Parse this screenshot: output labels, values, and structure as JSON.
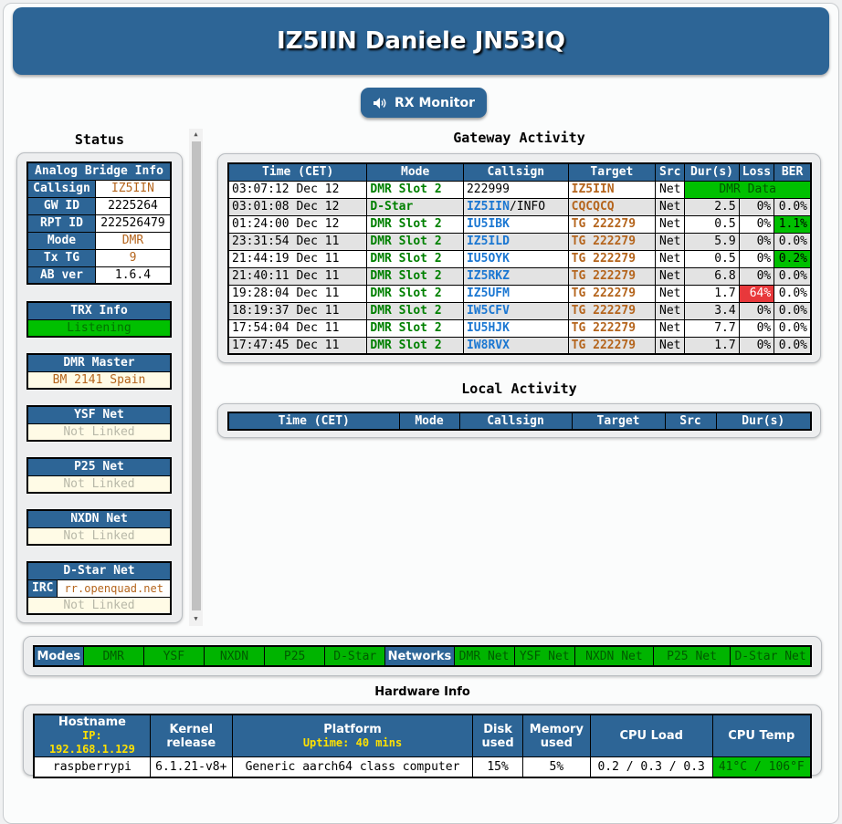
{
  "header": {
    "title": "IZ5IIN Daniele JN53IQ"
  },
  "rx_monitor": {
    "label": "RX Monitor",
    "icon": "speaker-icon"
  },
  "status": {
    "title": "Status",
    "analog_bridge": {
      "title": "Analog Bridge Info",
      "rows": [
        {
          "label": "Callsign",
          "value": "IZ5IIN"
        },
        {
          "label": "GW ID",
          "value": "2225264"
        },
        {
          "label": "RPT ID",
          "value": "222526479"
        },
        {
          "label": "Mode",
          "value": "DMR"
        },
        {
          "label": "Tx TG",
          "value": "9"
        },
        {
          "label": "AB ver",
          "value": "1.6.4"
        }
      ]
    },
    "trx": {
      "title": "TRX Info",
      "value": "Listening"
    },
    "dmr_master": {
      "title": "DMR Master",
      "value": "BM 2141 Spain"
    },
    "ysf": {
      "title": "YSF Net",
      "value": "Not Linked"
    },
    "p25": {
      "title": "P25 Net",
      "value": "Not Linked"
    },
    "nxdn": {
      "title": "NXDN Net",
      "value": "Not Linked"
    },
    "dstar": {
      "title": "D-Star Net",
      "irc_label": "IRC",
      "irc_value": "rr.openquad.net",
      "value": "Not Linked"
    }
  },
  "gateway": {
    "title": "Gateway Activity",
    "columns": [
      "Time (CET)",
      "Mode",
      "Callsign",
      "Target",
      "Src",
      "Dur(s)",
      "Loss",
      "BER"
    ],
    "rows": [
      {
        "time": "03:07:12 Dec 12",
        "mode": "DMR Slot 2",
        "callsign": "222999",
        "suffix": "",
        "target": "IZ5IIN",
        "src": "Net",
        "dur": "DMR Data",
        "loss": "",
        "ber": ""
      },
      {
        "time": "03:01:08 Dec 12",
        "mode": "D-Star",
        "callsign": "IZ5IIN",
        "suffix": "/INFO",
        "target": "CQCQCQ",
        "src": "Net",
        "dur": "2.5",
        "loss": "0%",
        "ber": "0.0%"
      },
      {
        "time": "01:24:00 Dec 12",
        "mode": "DMR Slot 2",
        "callsign": "IU5IBK",
        "suffix": "",
        "target": "TG 222279",
        "src": "Net",
        "dur": "0.5",
        "loss": "0%",
        "ber": "1.1%"
      },
      {
        "time": "23:31:54 Dec 11",
        "mode": "DMR Slot 2",
        "callsign": "IZ5ILD",
        "suffix": "",
        "target": "TG 222279",
        "src": "Net",
        "dur": "5.9",
        "loss": "0%",
        "ber": "0.0%"
      },
      {
        "time": "21:44:19 Dec 11",
        "mode": "DMR Slot 2",
        "callsign": "IU5OYK",
        "suffix": "",
        "target": "TG 222279",
        "src": "Net",
        "dur": "0.5",
        "loss": "0%",
        "ber": "0.2%"
      },
      {
        "time": "21:40:11 Dec 11",
        "mode": "DMR Slot 2",
        "callsign": "IZ5RKZ",
        "suffix": "",
        "target": "TG 222279",
        "src": "Net",
        "dur": "6.8",
        "loss": "0%",
        "ber": "0.0%"
      },
      {
        "time": "19:28:04 Dec 11",
        "mode": "DMR Slot 2",
        "callsign": "IZ5UFM",
        "suffix": "",
        "target": "TG 222279",
        "src": "Net",
        "dur": "1.7",
        "loss": "64%",
        "ber": "0.0%"
      },
      {
        "time": "18:19:37 Dec 11",
        "mode": "DMR Slot 2",
        "callsign": "IW5CFV",
        "suffix": "",
        "target": "TG 222279",
        "src": "Net",
        "dur": "3.4",
        "loss": "0%",
        "ber": "0.0%"
      },
      {
        "time": "17:54:04 Dec 11",
        "mode": "DMR Slot 2",
        "callsign": "IU5HJK",
        "suffix": "",
        "target": "TG 222279",
        "src": "Net",
        "dur": "7.7",
        "loss": "0%",
        "ber": "0.0%"
      },
      {
        "time": "17:47:45 Dec 11",
        "mode": "DMR Slot 2",
        "callsign": "IW8RVX",
        "suffix": "",
        "target": "TG 222279",
        "src": "Net",
        "dur": "1.7",
        "loss": "0%",
        "ber": "0.0%"
      }
    ]
  },
  "local": {
    "title": "Local Activity",
    "columns": [
      "Time (CET)",
      "Mode",
      "Callsign",
      "Target",
      "Src",
      "Dur(s)"
    ]
  },
  "modes_bar": {
    "modes_label": "Modes",
    "modes": [
      "DMR",
      "YSF",
      "NXDN",
      "P25",
      "D-Star"
    ],
    "networks_label": "Networks",
    "networks": [
      "DMR Net",
      "YSF Net",
      "NXDN Net",
      "P25 Net",
      "D-Star Net"
    ]
  },
  "hardware": {
    "title": "Hardware Info",
    "hostname_label": "Hostname",
    "ip": "IP: 192.168.1.129",
    "kernel_label_1": "Kernel",
    "kernel_label_2": "release",
    "platform_label": "Platform",
    "uptime": "Uptime: 40 mins",
    "disk_label_1": "Disk",
    "disk_label_2": "used",
    "memory_label_1": "Memory",
    "memory_label_2": "used",
    "cpu_load_label": "CPU Load",
    "cpu_temp_label": "CPU Temp",
    "hostname": "raspberrypi",
    "kernel": "6.1.21-v8+",
    "platform": "Generic aarch64 class computer",
    "disk": "15%",
    "memory": "5%",
    "cpu_load": "0.2 / 0.3 / 0.3",
    "cpu_temp": "41°C / 106°F"
  }
}
